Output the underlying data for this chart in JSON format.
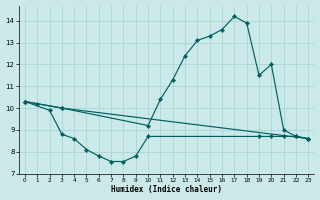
{
  "bg_color": "#cce9ea",
  "grid_color": "#b0d8da",
  "line_color": "#006060",
  "line1_x": [
    0,
    1,
    3,
    10,
    11,
    12,
    13,
    14,
    15,
    16,
    17,
    18,
    19,
    20,
    21,
    22,
    23
  ],
  "line1_y": [
    10.3,
    10.2,
    10.0,
    9.2,
    10.4,
    11.3,
    12.4,
    13.1,
    13.3,
    13.6,
    14.2,
    13.9,
    11.5,
    12.0,
    9.0,
    8.7,
    8.6
  ],
  "line2_x": [
    0,
    3,
    23
  ],
  "line2_y": [
    10.3,
    10.0,
    8.6
  ],
  "line3_x": [
    0,
    2,
    3,
    4,
    5,
    6,
    7,
    8,
    9,
    10,
    19,
    20,
    21,
    22,
    23
  ],
  "line3_y": [
    10.3,
    9.9,
    8.8,
    8.6,
    8.1,
    7.8,
    7.55,
    7.55,
    7.8,
    8.7,
    8.7,
    8.7,
    8.7,
    8.7,
    8.6
  ],
  "xlim": [
    -0.5,
    23.5
  ],
  "ylim": [
    7.0,
    14.7
  ],
  "yticks": [
    7,
    8,
    9,
    10,
    11,
    12,
    13,
    14
  ],
  "xticks": [
    0,
    1,
    2,
    3,
    4,
    5,
    6,
    7,
    8,
    9,
    10,
    11,
    12,
    13,
    14,
    15,
    16,
    17,
    18,
    19,
    20,
    21,
    22,
    23
  ],
  "xlabel": "Humidex (Indice chaleur)"
}
